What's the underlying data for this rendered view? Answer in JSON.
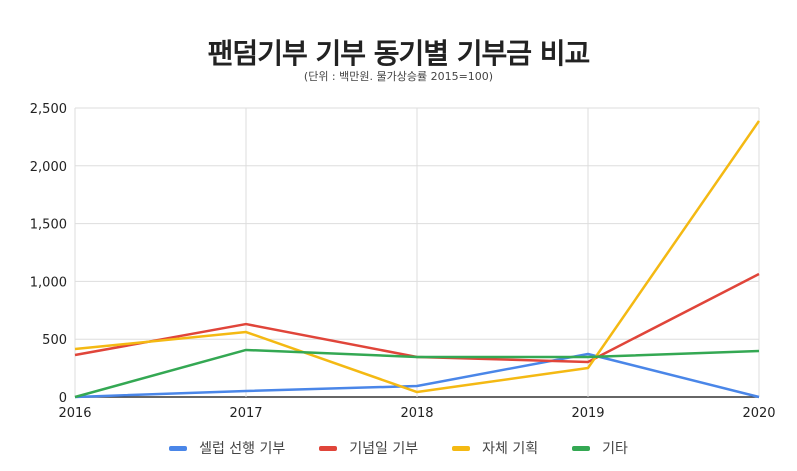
{
  "chart_data": {
    "type": "line",
    "title": "팬덤기부 기부 동기별 기부금 비교",
    "subtitle": "(단위 : 백만원. 물가상승률 2015=100)",
    "x": [
      "2016",
      "2017",
      "2018",
      "2019",
      "2020"
    ],
    "ylim": [
      0,
      2500
    ],
    "yticks": [
      0,
      500,
      1000,
      1500,
      2000,
      2500
    ],
    "ytick_labels": [
      "0",
      "500",
      "1,000",
      "1,500",
      "2,000",
      "2,500"
    ],
    "grid": true,
    "legend_position": "bottom",
    "series": [
      {
        "name": "셀럽 선행 기부",
        "color": "#4a86e8",
        "values": [
          0,
          52,
          95,
          372,
          0
        ]
      },
      {
        "name": "기념일 기부",
        "color": "#e0453a",
        "values": [
          363,
          631,
          346,
          303,
          1064
        ]
      },
      {
        "name": "자체 기획",
        "color": "#f4b913",
        "values": [
          415,
          562,
          43,
          251,
          2388
        ]
      },
      {
        "name": "기타",
        "color": "#34a853",
        "values": [
          0,
          407,
          346,
          346,
          398
        ]
      }
    ]
  }
}
